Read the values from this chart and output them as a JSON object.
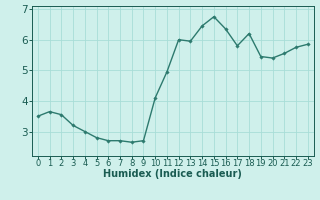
{
  "x": [
    0,
    1,
    2,
    3,
    4,
    5,
    6,
    7,
    8,
    9,
    10,
    11,
    12,
    13,
    14,
    15,
    16,
    17,
    18,
    19,
    20,
    21,
    22,
    23
  ],
  "y": [
    3.5,
    3.65,
    3.55,
    3.2,
    3.0,
    2.8,
    2.7,
    2.7,
    2.65,
    2.7,
    4.1,
    4.95,
    6.0,
    5.95,
    6.45,
    6.75,
    6.35,
    5.8,
    6.2,
    5.45,
    5.4,
    5.55,
    5.75,
    5.85
  ],
  "line_color": "#2d7a6e",
  "marker": "D",
  "marker_size": 1.8,
  "bg_color": "#cff0eb",
  "grid_color": "#a8ddd7",
  "axis_label_color": "#1a5c52",
  "tick_color": "#1a5c52",
  "xlabel": "Humidex (Indice chaleur)",
  "ylim": [
    2.2,
    7.1
  ],
  "yticks": [
    3,
    4,
    5,
    6,
    7
  ],
  "xlim": [
    -0.5,
    23.5
  ],
  "xticks": [
    0,
    1,
    2,
    3,
    4,
    5,
    6,
    7,
    8,
    9,
    10,
    11,
    12,
    13,
    14,
    15,
    16,
    17,
    18,
    19,
    20,
    21,
    22,
    23
  ],
  "xtick_labels": [
    "0",
    "1",
    "2",
    "3",
    "4",
    "5",
    "6",
    "7",
    "8",
    "9",
    "10",
    "11",
    "12",
    "13",
    "14",
    "15",
    "16",
    "17",
    "18",
    "19",
    "20",
    "21",
    "22",
    "23"
  ],
  "linewidth": 1.0,
  "font_size": 6.0,
  "xlabel_fontsize": 7.0
}
